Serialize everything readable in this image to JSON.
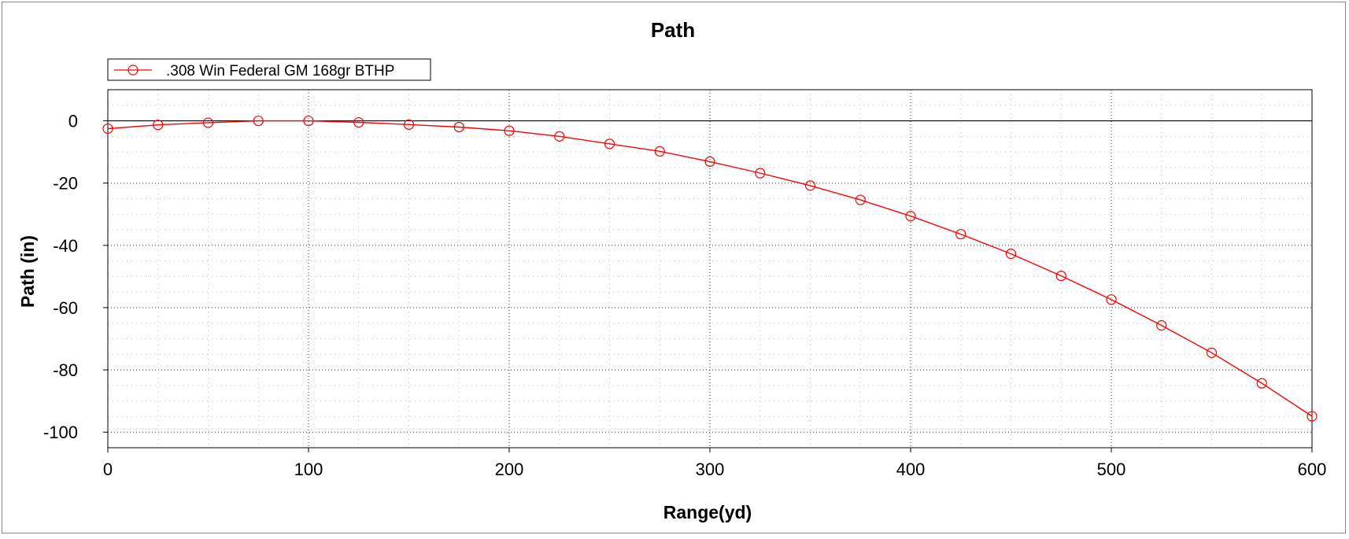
{
  "chart_data": {
    "type": "line",
    "title": "Path",
    "xlabel": "Range(yd)",
    "ylabel": "Path (in)",
    "xlim": [
      0,
      600
    ],
    "ylim": [
      -105,
      10
    ],
    "x_ticks": [
      0,
      100,
      200,
      300,
      400,
      500,
      600
    ],
    "y_ticks": [
      0,
      -20,
      -40,
      -60,
      -80,
      -100
    ],
    "grid": true,
    "legend_position": "top-left",
    "series": [
      {
        "name": ".308 Win Federal GM 168gr BTHP",
        "color": "#ff0000",
        "marker": "open-circle",
        "x": [
          0,
          25,
          50,
          75,
          100,
          125,
          150,
          175,
          200,
          225,
          250,
          275,
          300,
          325,
          350,
          375,
          400,
          425,
          450,
          475,
          500,
          525,
          550,
          575,
          600
        ],
        "y": [
          -2.5,
          -1.3,
          -0.6,
          0.0,
          0.0,
          -0.5,
          -1.2,
          -2.0,
          -3.2,
          -5.0,
          -7.4,
          -9.8,
          -13.1,
          -16.8,
          -20.8,
          -25.4,
          -30.6,
          -36.4,
          -42.7,
          -49.8,
          -57.4,
          -65.7,
          -74.5,
          -84.3,
          -94.9
        ]
      }
    ]
  }
}
